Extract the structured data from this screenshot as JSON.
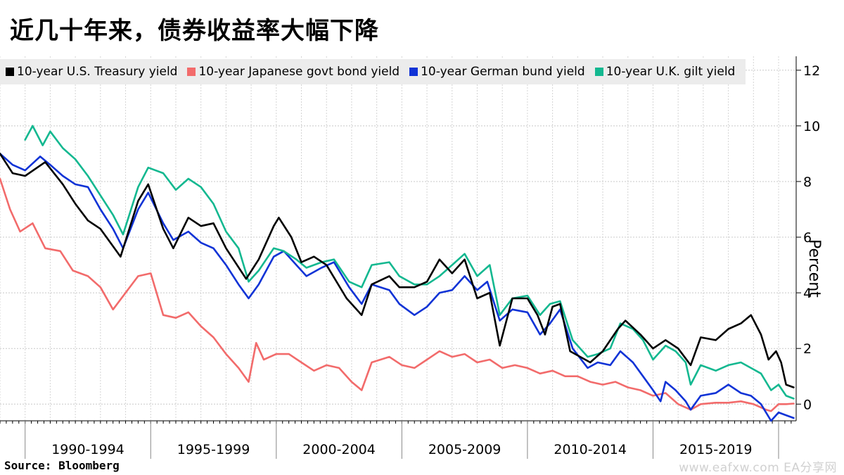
{
  "title": "近几十年来，债券收益率大幅下降",
  "source": "Source:  Bloomberg",
  "watermark": "www.eafxw.com  EA分享网",
  "chart_data": {
    "type": "line",
    "ylabel": "Percent",
    "ylim": [
      -0.6,
      12.5
    ],
    "yticks": [
      0,
      2,
      4,
      6,
      8,
      10,
      12
    ],
    "xlim": [
      1989.0,
      2020.7
    ],
    "x_periods": [
      {
        "label": "1990-1994",
        "start": 1990,
        "end": 1995
      },
      {
        "label": "1995-1999",
        "start": 1995,
        "end": 2000
      },
      {
        "label": "2000-2004",
        "start": 2000,
        "end": 2005
      },
      {
        "label": "2005-2009",
        "start": 2005,
        "end": 2010
      },
      {
        "label": "2010-2014",
        "start": 2010,
        "end": 2015
      },
      {
        "label": "2015-2019",
        "start": 2015,
        "end": 2020
      }
    ],
    "grid": true,
    "legend_placement": "top-left",
    "series": [
      {
        "name": "10-year U.S. Treasury yield",
        "color": "#000000",
        "points": [
          [
            1989.0,
            9.0
          ],
          [
            1989.5,
            8.3
          ],
          [
            1990.0,
            8.2
          ],
          [
            1990.8,
            8.7
          ],
          [
            1991.5,
            7.9
          ],
          [
            1992.0,
            7.2
          ],
          [
            1992.5,
            6.6
          ],
          [
            1993.0,
            6.3
          ],
          [
            1993.8,
            5.3
          ],
          [
            1994.5,
            7.3
          ],
          [
            1994.9,
            7.9
          ],
          [
            1995.5,
            6.3
          ],
          [
            1995.9,
            5.6
          ],
          [
            1996.5,
            6.7
          ],
          [
            1997.0,
            6.4
          ],
          [
            1997.5,
            6.5
          ],
          [
            1998.0,
            5.6
          ],
          [
            1998.8,
            4.5
          ],
          [
            1999.3,
            5.2
          ],
          [
            1999.9,
            6.4
          ],
          [
            2000.1,
            6.7
          ],
          [
            2000.6,
            6.0
          ],
          [
            2001.0,
            5.1
          ],
          [
            2001.5,
            5.3
          ],
          [
            2002.0,
            5.0
          ],
          [
            2002.8,
            3.8
          ],
          [
            2003.4,
            3.2
          ],
          [
            2003.8,
            4.3
          ],
          [
            2004.5,
            4.6
          ],
          [
            2004.9,
            4.2
          ],
          [
            2005.5,
            4.2
          ],
          [
            2006.0,
            4.4
          ],
          [
            2006.5,
            5.2
          ],
          [
            2007.0,
            4.7
          ],
          [
            2007.5,
            5.2
          ],
          [
            2008.0,
            3.8
          ],
          [
            2008.5,
            4.0
          ],
          [
            2008.9,
            2.1
          ],
          [
            2009.4,
            3.8
          ],
          [
            2010.0,
            3.8
          ],
          [
            2010.4,
            3.2
          ],
          [
            2010.7,
            2.5
          ],
          [
            2011.0,
            3.5
          ],
          [
            2011.3,
            3.6
          ],
          [
            2011.7,
            1.9
          ],
          [
            2012.5,
            1.5
          ],
          [
            2013.0,
            1.9
          ],
          [
            2013.6,
            2.7
          ],
          [
            2013.9,
            3.0
          ],
          [
            2014.5,
            2.5
          ],
          [
            2015.0,
            2.0
          ],
          [
            2015.5,
            2.3
          ],
          [
            2016.0,
            2.0
          ],
          [
            2016.5,
            1.4
          ],
          [
            2016.9,
            2.4
          ],
          [
            2017.5,
            2.3
          ],
          [
            2018.0,
            2.7
          ],
          [
            2018.5,
            2.9
          ],
          [
            2018.9,
            3.2
          ],
          [
            2019.3,
            2.5
          ],
          [
            2019.6,
            1.6
          ],
          [
            2019.9,
            1.9
          ],
          [
            2020.1,
            1.5
          ],
          [
            2020.3,
            0.7
          ],
          [
            2020.6,
            0.6
          ]
        ]
      },
      {
        "name": "10-year Japanese govt bond yield",
        "color": "#f26b6b",
        "points": [
          [
            1989.0,
            8.1
          ],
          [
            1989.4,
            7.0
          ],
          [
            1989.8,
            6.2
          ],
          [
            1990.3,
            6.5
          ],
          [
            1990.8,
            5.6
          ],
          [
            1991.4,
            5.5
          ],
          [
            1991.9,
            4.8
          ],
          [
            1992.5,
            4.6
          ],
          [
            1993.0,
            4.2
          ],
          [
            1993.5,
            3.4
          ],
          [
            1994.0,
            4.0
          ],
          [
            1994.5,
            4.6
          ],
          [
            1995.0,
            4.7
          ],
          [
            1995.5,
            3.2
          ],
          [
            1996.0,
            3.1
          ],
          [
            1996.5,
            3.3
          ],
          [
            1997.0,
            2.8
          ],
          [
            1997.5,
            2.4
          ],
          [
            1998.0,
            1.8
          ],
          [
            1998.5,
            1.3
          ],
          [
            1998.9,
            0.8
          ],
          [
            1999.2,
            2.2
          ],
          [
            1999.5,
            1.6
          ],
          [
            2000.0,
            1.8
          ],
          [
            2000.5,
            1.8
          ],
          [
            2001.0,
            1.5
          ],
          [
            2001.5,
            1.2
          ],
          [
            2002.0,
            1.4
          ],
          [
            2002.5,
            1.3
          ],
          [
            2003.0,
            0.8
          ],
          [
            2003.4,
            0.5
          ],
          [
            2003.8,
            1.5
          ],
          [
            2004.5,
            1.7
          ],
          [
            2005.0,
            1.4
          ],
          [
            2005.5,
            1.3
          ],
          [
            2006.0,
            1.6
          ],
          [
            2006.5,
            1.9
          ],
          [
            2007.0,
            1.7
          ],
          [
            2007.5,
            1.8
          ],
          [
            2008.0,
            1.5
          ],
          [
            2008.5,
            1.6
          ],
          [
            2009.0,
            1.3
          ],
          [
            2009.5,
            1.4
          ],
          [
            2010.0,
            1.3
          ],
          [
            2010.5,
            1.1
          ],
          [
            2011.0,
            1.2
          ],
          [
            2011.5,
            1.0
          ],
          [
            2012.0,
            1.0
          ],
          [
            2012.5,
            0.8
          ],
          [
            2013.0,
            0.7
          ],
          [
            2013.5,
            0.8
          ],
          [
            2014.0,
            0.6
          ],
          [
            2014.5,
            0.5
          ],
          [
            2015.0,
            0.3
          ],
          [
            2015.5,
            0.4
          ],
          [
            2016.0,
            0.0
          ],
          [
            2016.5,
            -0.2
          ],
          [
            2016.9,
            0.0
          ],
          [
            2017.5,
            0.05
          ],
          [
            2018.0,
            0.05
          ],
          [
            2018.5,
            0.1
          ],
          [
            2019.0,
            0.0
          ],
          [
            2019.5,
            -0.2
          ],
          [
            2019.7,
            -0.25
          ],
          [
            2020.0,
            0.0
          ],
          [
            2020.3,
            0.0
          ],
          [
            2020.6,
            0.02
          ]
        ]
      },
      {
        "name": "10-year German bund yield",
        "color": "#1033d6",
        "points": [
          [
            1989.0,
            9.0
          ],
          [
            1989.5,
            8.6
          ],
          [
            1990.0,
            8.4
          ],
          [
            1990.6,
            8.9
          ],
          [
            1991.0,
            8.6
          ],
          [
            1991.5,
            8.2
          ],
          [
            1992.0,
            7.9
          ],
          [
            1992.5,
            7.8
          ],
          [
            1993.0,
            7.0
          ],
          [
            1993.5,
            6.3
          ],
          [
            1993.9,
            5.6
          ],
          [
            1994.5,
            7.0
          ],
          [
            1994.9,
            7.6
          ],
          [
            1995.5,
            6.5
          ],
          [
            1995.9,
            5.9
          ],
          [
            1996.5,
            6.2
          ],
          [
            1997.0,
            5.8
          ],
          [
            1997.5,
            5.6
          ],
          [
            1998.0,
            5.0
          ],
          [
            1998.5,
            4.3
          ],
          [
            1998.9,
            3.8
          ],
          [
            1999.3,
            4.3
          ],
          [
            1999.9,
            5.3
          ],
          [
            2000.3,
            5.5
          ],
          [
            2000.8,
            5.0
          ],
          [
            2001.2,
            4.6
          ],
          [
            2001.8,
            4.9
          ],
          [
            2002.3,
            5.1
          ],
          [
            2002.9,
            4.2
          ],
          [
            2003.4,
            3.6
          ],
          [
            2003.8,
            4.3
          ],
          [
            2004.5,
            4.1
          ],
          [
            2004.9,
            3.6
          ],
          [
            2005.5,
            3.2
          ],
          [
            2006.0,
            3.5
          ],
          [
            2006.5,
            4.0
          ],
          [
            2007.0,
            4.1
          ],
          [
            2007.5,
            4.6
          ],
          [
            2008.0,
            4.1
          ],
          [
            2008.4,
            4.4
          ],
          [
            2008.9,
            3.0
          ],
          [
            2009.4,
            3.4
          ],
          [
            2010.0,
            3.3
          ],
          [
            2010.5,
            2.5
          ],
          [
            2010.9,
            2.9
          ],
          [
            2011.3,
            3.4
          ],
          [
            2011.8,
            2.0
          ],
          [
            2012.4,
            1.3
          ],
          [
            2012.8,
            1.5
          ],
          [
            2013.3,
            1.4
          ],
          [
            2013.7,
            1.9
          ],
          [
            2014.2,
            1.5
          ],
          [
            2014.6,
            1.0
          ],
          [
            2015.0,
            0.5
          ],
          [
            2015.3,
            0.1
          ],
          [
            2015.5,
            0.8
          ],
          [
            2015.9,
            0.5
          ],
          [
            2016.3,
            0.1
          ],
          [
            2016.5,
            -0.2
          ],
          [
            2016.9,
            0.3
          ],
          [
            2017.5,
            0.4
          ],
          [
            2018.0,
            0.7
          ],
          [
            2018.5,
            0.4
          ],
          [
            2018.9,
            0.3
          ],
          [
            2019.3,
            0.0
          ],
          [
            2019.7,
            -0.6
          ],
          [
            2020.0,
            -0.3
          ],
          [
            2020.3,
            -0.4
          ],
          [
            2020.6,
            -0.5
          ]
        ]
      },
      {
        "name": "10-year U.K. gilt yield",
        "color": "#13b890",
        "points": [
          [
            1990.0,
            9.5
          ],
          [
            1990.3,
            10.0
          ],
          [
            1990.7,
            9.3
          ],
          [
            1991.0,
            9.8
          ],
          [
            1991.5,
            9.2
          ],
          [
            1992.0,
            8.8
          ],
          [
            1992.5,
            8.2
          ],
          [
            1993.0,
            7.5
          ],
          [
            1993.5,
            6.8
          ],
          [
            1993.9,
            6.1
          ],
          [
            1994.5,
            7.8
          ],
          [
            1994.9,
            8.5
          ],
          [
            1995.5,
            8.3
          ],
          [
            1996.0,
            7.7
          ],
          [
            1996.5,
            8.1
          ],
          [
            1997.0,
            7.8
          ],
          [
            1997.5,
            7.2
          ],
          [
            1998.0,
            6.2
          ],
          [
            1998.5,
            5.6
          ],
          [
            1998.9,
            4.4
          ],
          [
            1999.3,
            4.8
          ],
          [
            1999.9,
            5.6
          ],
          [
            2000.3,
            5.5
          ],
          [
            2000.8,
            5.2
          ],
          [
            2001.2,
            4.9
          ],
          [
            2001.8,
            5.1
          ],
          [
            2002.3,
            5.2
          ],
          [
            2002.9,
            4.4
          ],
          [
            2003.4,
            4.2
          ],
          [
            2003.8,
            5.0
          ],
          [
            2004.5,
            5.1
          ],
          [
            2004.9,
            4.6
          ],
          [
            2005.5,
            4.3
          ],
          [
            2006.0,
            4.3
          ],
          [
            2006.5,
            4.6
          ],
          [
            2007.0,
            5.0
          ],
          [
            2007.5,
            5.4
          ],
          [
            2008.0,
            4.6
          ],
          [
            2008.5,
            5.0
          ],
          [
            2008.9,
            3.2
          ],
          [
            2009.4,
            3.8
          ],
          [
            2010.0,
            3.9
          ],
          [
            2010.5,
            3.2
          ],
          [
            2010.9,
            3.6
          ],
          [
            2011.3,
            3.7
          ],
          [
            2011.8,
            2.3
          ],
          [
            2012.4,
            1.7
          ],
          [
            2012.8,
            1.8
          ],
          [
            2013.3,
            2.0
          ],
          [
            2013.7,
            2.9
          ],
          [
            2014.2,
            2.7
          ],
          [
            2014.6,
            2.3
          ],
          [
            2015.0,
            1.6
          ],
          [
            2015.5,
            2.1
          ],
          [
            2015.9,
            1.9
          ],
          [
            2016.3,
            1.5
          ],
          [
            2016.5,
            0.7
          ],
          [
            2016.9,
            1.4
          ],
          [
            2017.5,
            1.2
          ],
          [
            2018.0,
            1.4
          ],
          [
            2018.5,
            1.5
          ],
          [
            2018.9,
            1.3
          ],
          [
            2019.3,
            1.1
          ],
          [
            2019.7,
            0.5
          ],
          [
            2020.0,
            0.7
          ],
          [
            2020.3,
            0.3
          ],
          [
            2020.6,
            0.2
          ]
        ]
      }
    ]
  }
}
